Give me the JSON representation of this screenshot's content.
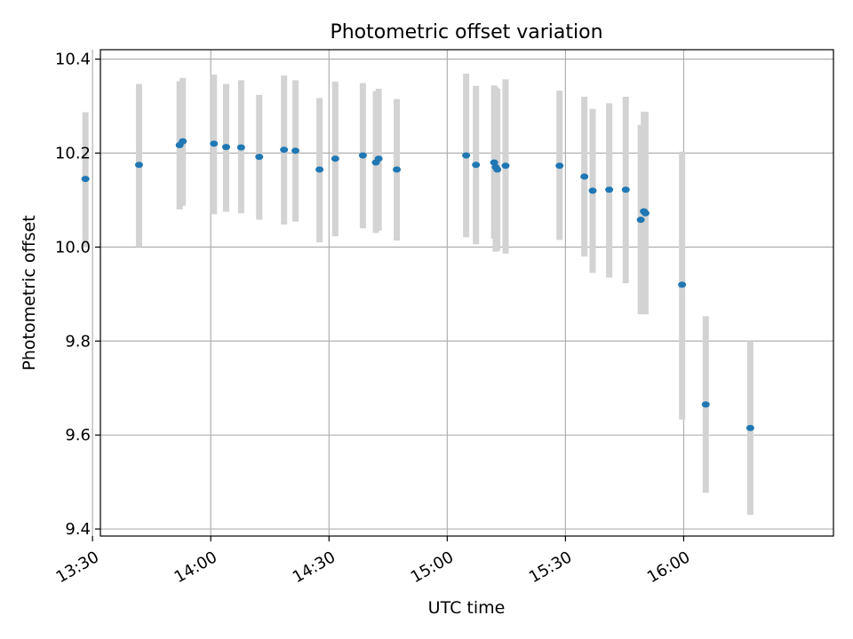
{
  "chart_data": {
    "type": "scatter",
    "title": "Photometric offset variation",
    "xlabel": "UTC time",
    "ylabel": "Photometric offset",
    "xlim_minutes": [
      812,
      998
    ],
    "ylim": [
      9.385,
      10.42
    ],
    "grid": true,
    "colors": {
      "point": "#1f77b4",
      "errorbar": "#d3d3d3",
      "grid": "#b0b0b0",
      "axes": "#000000"
    },
    "x_ticks": [
      {
        "value": 810,
        "label": "13:30"
      },
      {
        "value": 840,
        "label": "14:00"
      },
      {
        "value": 870,
        "label": "14:30"
      },
      {
        "value": 900,
        "label": "15:00"
      },
      {
        "value": 930,
        "label": "15:30"
      },
      {
        "value": 960,
        "label": "16:00"
      }
    ],
    "y_ticks": [
      {
        "value": 9.4,
        "label": "9.4"
      },
      {
        "value": 9.6,
        "label": "9.6"
      },
      {
        "value": 9.8,
        "label": "9.8"
      },
      {
        "value": 10.0,
        "label": "10.0"
      },
      {
        "value": 10.2,
        "label": "10.2"
      },
      {
        "value": 10.4,
        "label": "10.4"
      }
    ],
    "points": [
      {
        "t": 808.2,
        "y": 10.145,
        "lo": 10.0,
        "hi": 10.287
      },
      {
        "t": 821.8,
        "y": 10.175,
        "lo": 10.0,
        "hi": 10.347
      },
      {
        "t": 832.1,
        "y": 10.217,
        "lo": 10.08,
        "hi": 10.353
      },
      {
        "t": 832.9,
        "y": 10.225,
        "lo": 10.088,
        "hi": 10.36
      },
      {
        "t": 840.8,
        "y": 10.22,
        "lo": 10.07,
        "hi": 10.367
      },
      {
        "t": 843.9,
        "y": 10.213,
        "lo": 10.075,
        "hi": 10.347
      },
      {
        "t": 847.7,
        "y": 10.212,
        "lo": 10.072,
        "hi": 10.355
      },
      {
        "t": 852.3,
        "y": 10.192,
        "lo": 10.058,
        "hi": 10.324
      },
      {
        "t": 858.6,
        "y": 10.207,
        "lo": 10.048,
        "hi": 10.365
      },
      {
        "t": 861.5,
        "y": 10.205,
        "lo": 10.054,
        "hi": 10.355
      },
      {
        "t": 867.6,
        "y": 10.165,
        "lo": 10.01,
        "hi": 10.317
      },
      {
        "t": 871.6,
        "y": 10.188,
        "lo": 10.023,
        "hi": 10.352
      },
      {
        "t": 878.6,
        "y": 10.195,
        "lo": 10.04,
        "hi": 10.349
      },
      {
        "t": 881.9,
        "y": 10.18,
        "lo": 10.03,
        "hi": 10.332
      },
      {
        "t": 882.6,
        "y": 10.188,
        "lo": 10.035,
        "hi": 10.337
      },
      {
        "t": 887.2,
        "y": 10.165,
        "lo": 10.014,
        "hi": 10.315
      },
      {
        "t": 904.8,
        "y": 10.195,
        "lo": 10.021,
        "hi": 10.369
      },
      {
        "t": 907.3,
        "y": 10.175,
        "lo": 10.006,
        "hi": 10.343
      },
      {
        "t": 911.9,
        "y": 10.18,
        "lo": 10.018,
        "hi": 10.344
      },
      {
        "t": 912.3,
        "y": 10.17,
        "lo": 9.99,
        "hi": 10.34
      },
      {
        "t": 912.7,
        "y": 10.165,
        "lo": 9.992,
        "hi": 10.337
      },
      {
        "t": 914.8,
        "y": 10.173,
        "lo": 9.986,
        "hi": 10.357
      },
      {
        "t": 928.5,
        "y": 10.173,
        "lo": 10.015,
        "hi": 10.333
      },
      {
        "t": 934.8,
        "y": 10.15,
        "lo": 9.98,
        "hi": 10.32
      },
      {
        "t": 936.9,
        "y": 10.12,
        "lo": 9.945,
        "hi": 10.294
      },
      {
        "t": 941.1,
        "y": 10.122,
        "lo": 9.935,
        "hi": 10.306
      },
      {
        "t": 945.3,
        "y": 10.122,
        "lo": 9.923,
        "hi": 10.32
      },
      {
        "t": 949.1,
        "y": 10.058,
        "lo": 9.857,
        "hi": 10.26
      },
      {
        "t": 949.9,
        "y": 10.076,
        "lo": 9.862,
        "hi": 10.288
      },
      {
        "t": 950.3,
        "y": 10.072,
        "lo": 9.857,
        "hi": 10.288
      },
      {
        "t": 959.6,
        "y": 9.92,
        "lo": 9.633,
        "hi": 10.203
      },
      {
        "t": 965.6,
        "y": 9.665,
        "lo": 9.477,
        "hi": 9.853
      },
      {
        "t": 976.9,
        "y": 9.615,
        "lo": 9.43,
        "hi": 9.8
      }
    ]
  }
}
